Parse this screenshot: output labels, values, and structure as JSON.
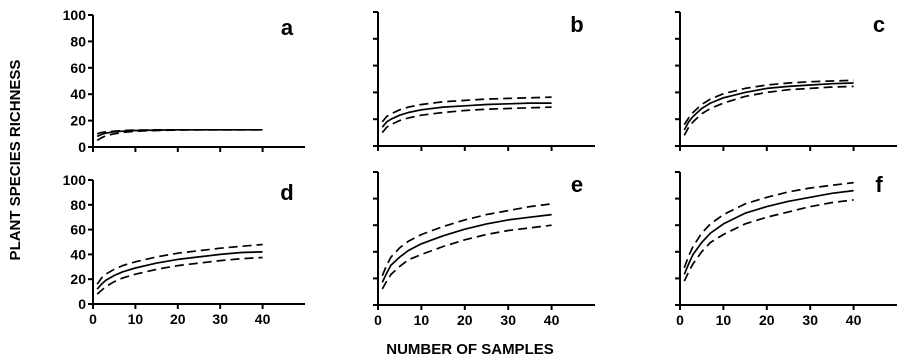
{
  "chart_data": {
    "type": "line",
    "xlabel": "NUMBER OF SAMPLES",
    "ylabel": "PLANT SPECIES RICHNESS",
    "xlim": [
      0,
      50
    ],
    "ylim": [
      0,
      100
    ],
    "x_ticks": [
      "0",
      "10",
      "20",
      "30",
      "40"
    ],
    "y_ticks": [
      "0",
      "20",
      "40",
      "60",
      "80",
      "100"
    ],
    "grid": false,
    "legend": "none",
    "line_color": "#000000",
    "panels": [
      {
        "label": "a",
        "x": [
          1,
          2,
          3,
          5,
          7,
          10,
          15,
          20,
          25,
          30,
          35,
          40
        ],
        "series": [
          {
            "style": "dashed",
            "values": [
              10,
              11,
              11.5,
              12,
              12.5,
              12.8,
              13,
              13,
              13,
              13,
              13,
              13
            ]
          },
          {
            "style": "solid",
            "values": [
              8,
              9.5,
              10.5,
              11.5,
              12,
              12.5,
              12.8,
              13,
              13,
              13,
              13,
              13
            ]
          },
          {
            "style": "dashed",
            "values": [
              5,
              7,
              8.5,
              10,
              11,
              12,
              12.5,
              12.8,
              13,
              13,
              13,
              13
            ]
          }
        ]
      },
      {
        "label": "b",
        "x": [
          1,
          2,
          3,
          5,
          7,
          10,
          15,
          20,
          25,
          30,
          35,
          40
        ],
        "series": [
          {
            "style": "dashed",
            "values": [
              18,
              22,
              24,
              27,
              29,
              31,
              33,
              34,
              35,
              35.5,
              36,
              36.5
            ]
          },
          {
            "style": "solid",
            "values": [
              14,
              18,
              20,
              23,
              25,
              27,
              29,
              30,
              31,
              31.5,
              32,
              32
            ]
          },
          {
            "style": "dashed",
            "values": [
              10,
              14,
              16,
              19,
              21,
              23,
              25,
              26.5,
              27.5,
              28,
              28.5,
              29
            ]
          }
        ]
      },
      {
        "label": "c",
        "x": [
          1,
          2,
          3,
          5,
          7,
          10,
          15,
          20,
          25,
          30,
          35,
          40
        ],
        "series": [
          {
            "style": "dashed",
            "values": [
              16,
              21,
              25,
              31,
              35,
              39,
              43,
              45.5,
              47,
              48,
              48.5,
              49
            ]
          },
          {
            "style": "solid",
            "values": [
              12,
              18,
              22,
              28,
              32,
              36,
              40,
              43,
              44.5,
              45.5,
              46.5,
              47
            ]
          },
          {
            "style": "dashed",
            "values": [
              8,
              14,
              18,
              24,
              28,
              32,
              37,
              40,
              42,
              43,
              44,
              44.5
            ]
          }
        ]
      },
      {
        "label": "d",
        "x": [
          1,
          2,
          3,
          5,
          7,
          10,
          15,
          20,
          25,
          30,
          35,
          40
        ],
        "series": [
          {
            "style": "dashed",
            "values": [
              16,
              21,
              24,
              28,
              31,
              34,
              38,
              41,
              43,
              45,
              46.5,
              48
            ]
          },
          {
            "style": "solid",
            "values": [
              12,
              16,
              19,
              23,
              26,
              29,
              33,
              36,
              38,
              40,
              41.5,
              42
            ]
          },
          {
            "style": "dashed",
            "values": [
              8,
              11,
              14,
              18,
              21,
              24,
              28,
              31,
              33,
              35,
              36.5,
              37.5
            ]
          }
        ]
      },
      {
        "label": "e",
        "x": [
          1,
          2,
          3,
          5,
          7,
          10,
          15,
          20,
          25,
          30,
          35,
          40
        ],
        "series": [
          {
            "style": "dashed",
            "values": [
              22,
              30,
              36,
              43,
              48,
              53,
              59,
              64,
              68,
              71,
              74,
              76
            ]
          },
          {
            "style": "solid",
            "values": [
              17,
              24,
              30,
              36,
              41,
              46,
              52,
              57,
              61,
              64,
              66,
              68
            ]
          },
          {
            "style": "dashed",
            "values": [
              12,
              18,
              23,
              29,
              34,
              38,
              44,
              49,
              53,
              56,
              58,
              60
            ]
          }
        ]
      },
      {
        "label": "f",
        "x": [
          1,
          2,
          3,
          5,
          7,
          10,
          15,
          20,
          25,
          30,
          35,
          40
        ],
        "series": [
          {
            "style": "dashed",
            "values": [
              28,
              37,
              44,
              54,
              61,
              68,
              76,
              81,
              85,
              88,
              90,
              92
            ]
          },
          {
            "style": "solid",
            "values": [
              23,
              31,
              38,
              47,
              54,
              61,
              69,
              74,
              78,
              81,
              84,
              86
            ]
          },
          {
            "style": "dashed",
            "values": [
              18,
              25,
              31,
              40,
              47,
              53,
              61,
              66,
              70,
              74,
              77,
              79
            ]
          }
        ]
      }
    ]
  }
}
